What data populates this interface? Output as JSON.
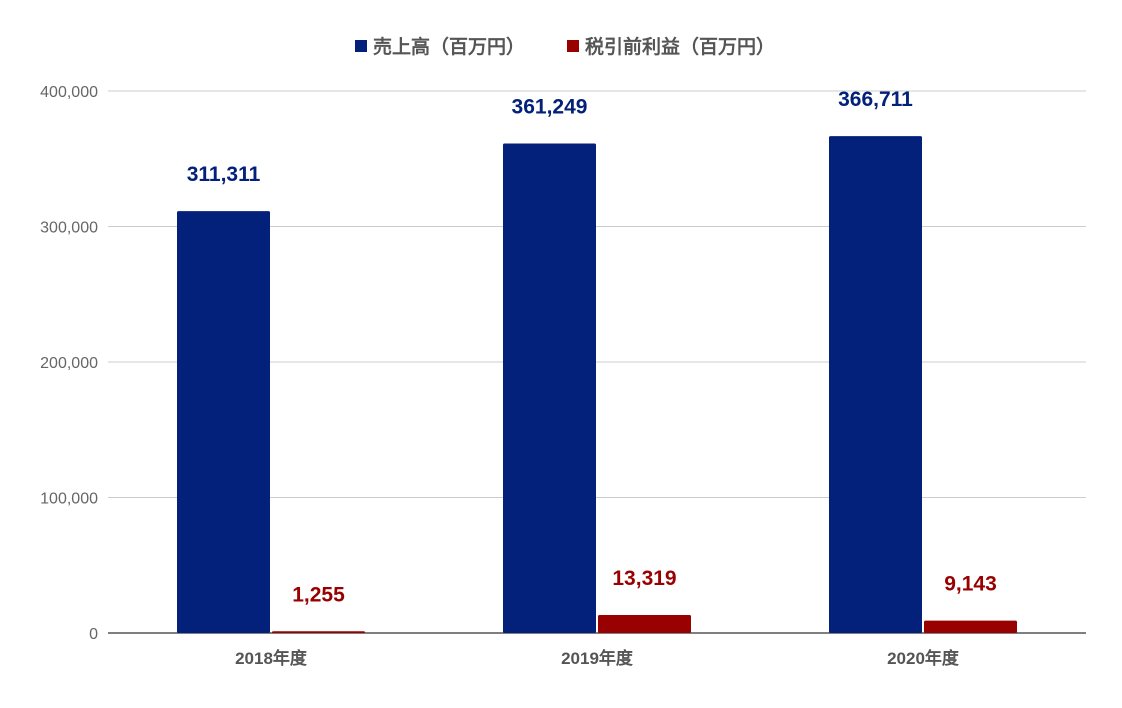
{
  "chart_data": {
    "type": "bar",
    "categories": [
      "2018年度",
      "2019年度",
      "2020年度"
    ],
    "series": [
      {
        "name": "売上高（百万円）",
        "values": [
          311311,
          361249,
          366711
        ],
        "labels": [
          "311,311",
          "361,249",
          "366,711"
        ],
        "color": "#03217a"
      },
      {
        "name": "税引前利益（百万円）",
        "values": [
          1255,
          13319,
          9143
        ],
        "labels": [
          "1,255",
          "13,319",
          "9,143"
        ],
        "color": "#990000"
      }
    ],
    "ylim": [
      0,
      400000
    ],
    "yticks": [
      0,
      100000,
      200000,
      300000,
      400000
    ],
    "ytick_labels": [
      "0",
      "100,000",
      "200,000",
      "300,000",
      "400,000"
    ],
    "grid": true,
    "legend_position": "top-center",
    "title": "",
    "xlabel": "",
    "ylabel": ""
  }
}
